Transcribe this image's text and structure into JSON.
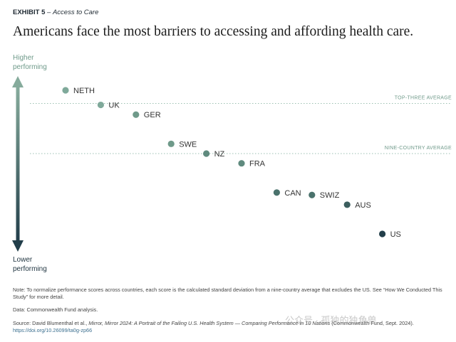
{
  "exhibit": {
    "number": "EXHIBIT 5",
    "dash": " – ",
    "name": "Access to Care"
  },
  "title": "Americans face the most barriers to accessing and affording health care.",
  "axis": {
    "higher": [
      "Higher",
      "performing"
    ],
    "lower": [
      "Lower",
      "performing"
    ]
  },
  "chart_data": {
    "type": "scatter",
    "x": [
      "NETH",
      "UK",
      "GER",
      "SWE",
      "NZ",
      "FRA",
      "CAN",
      "SWIZ",
      "AUS",
      "US"
    ],
    "values": [
      1.3,
      1.0,
      0.8,
      0.2,
      0.0,
      -0.2,
      -0.8,
      -0.85,
      -1.05,
      -1.65
    ],
    "colors": [
      "#7fa99a",
      "#7fa99a",
      "#6f9a8a",
      "#6f9a8a",
      "#5f8a7e",
      "#5f8a7e",
      "#4a726c",
      "#4a726c",
      "#3b5e5e",
      "#223e4a"
    ],
    "reference_lines": [
      {
        "label": "TOP-THREE AVERAGE",
        "value": 1.03
      },
      {
        "label": "NINE-COUNTRY AVERAGE",
        "value": 0.0
      }
    ],
    "ylim": [
      -2.0,
      1.6
    ]
  },
  "footnotes": {
    "note": "Note: To normalize performance scores across countries, each score is the calculated standard deviation from a nine-country average that excludes the US. See “How We Conducted This Study” for more detail.",
    "data": "Data: Commonwealth Fund analysis.",
    "source_prefix": "Source: David Blumenthal et al., ",
    "source_italic": "Mirror, Mirror 2024: A Portrait of the Failing U.S. Health System — Comparing Performance in 10 Nations",
    "source_suffix": " (Commonwealth Fund, Sept. 2024).",
    "doi": "https://doi.org/10.26099/ta0g-zp66"
  },
  "watermark": "公众号 · 孤独的独角兽"
}
